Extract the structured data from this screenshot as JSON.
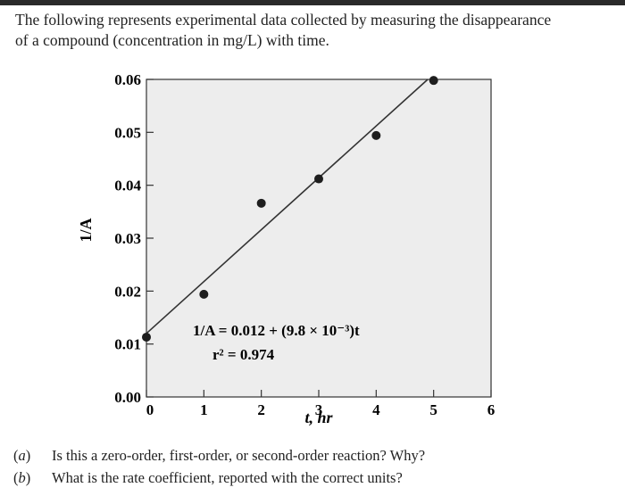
{
  "intro": {
    "line1": "The following represents experimental data collected by measuring the disappearance",
    "line2": "of a compound (concentration in mg/L) with time."
  },
  "chart_data": {
    "type": "scatter",
    "ylabel": "1/A",
    "xlabel": "t, hr",
    "xlim": [
      0,
      6
    ],
    "ylim": [
      0.0,
      0.06
    ],
    "xticks": [
      "0",
      "1",
      "2",
      "3",
      "4",
      "5",
      "6"
    ],
    "yticks": [
      "0.00",
      "0.01",
      "0.02",
      "0.03",
      "0.04",
      "0.05",
      "0.06"
    ],
    "points": [
      {
        "x": 0,
        "y": 0.0113
      },
      {
        "x": 1,
        "y": 0.0194
      },
      {
        "x": 2,
        "y": 0.0366
      },
      {
        "x": 3,
        "y": 0.0412
      },
      {
        "x": 4,
        "y": 0.0494
      },
      {
        "x": 5,
        "y": 0.0598
      }
    ],
    "fit": {
      "intercept": 0.012,
      "slope": 0.0098
    },
    "equation_line1": "1/A = 0.012 + (9.8 × 10⁻³)t",
    "equation_line2": "r² = 0.974",
    "plot_background": "#ededed",
    "point_color": "#1e1e1e",
    "line_color": "#333333"
  },
  "questions": [
    {
      "label": "a",
      "text": "Is this a zero-order, first-order, or second-order reaction? Why?"
    },
    {
      "label": "b",
      "text": "What is the rate coefficient, reported with the correct units?"
    }
  ]
}
